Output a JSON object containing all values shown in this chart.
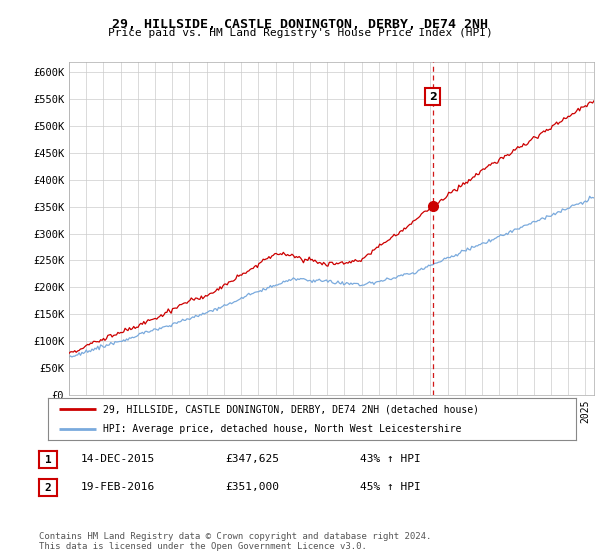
{
  "title1": "29, HILLSIDE, CASTLE DONINGTON, DERBY, DE74 2NH",
  "title2": "Price paid vs. HM Land Registry's House Price Index (HPI)",
  "ylim": [
    0,
    620000
  ],
  "yticks": [
    0,
    50000,
    100000,
    150000,
    200000,
    250000,
    300000,
    350000,
    400000,
    450000,
    500000,
    550000,
    600000
  ],
  "ytick_labels": [
    "£0",
    "£50K",
    "£100K",
    "£150K",
    "£200K",
    "£250K",
    "£300K",
    "£350K",
    "£400K",
    "£450K",
    "£500K",
    "£550K",
    "£600K"
  ],
  "hpi_color": "#7aaadd",
  "price_color": "#cc0000",
  "dashed_color": "#cc0000",
  "annotation_box_color": "#cc0000",
  "sale1_date_num": 2015.96,
  "sale1_value": 347625,
  "sale2_date_num": 2016.13,
  "sale2_value": 351000,
  "legend_label1": "29, HILLSIDE, CASTLE DONINGTON, DERBY, DE74 2NH (detached house)",
  "legend_label2": "HPI: Average price, detached house, North West Leicestershire",
  "table_row1": [
    "1",
    "14-DEC-2015",
    "£347,625",
    "43% ↑ HPI"
  ],
  "table_row2": [
    "2",
    "19-FEB-2016",
    "£351,000",
    "45% ↑ HPI"
  ],
  "footer": "Contains HM Land Registry data © Crown copyright and database right 2024.\nThis data is licensed under the Open Government Licence v3.0.",
  "background_color": "#ffffff",
  "grid_color": "#cccccc",
  "xlim_start": 1995.0,
  "xlim_end": 2025.5
}
